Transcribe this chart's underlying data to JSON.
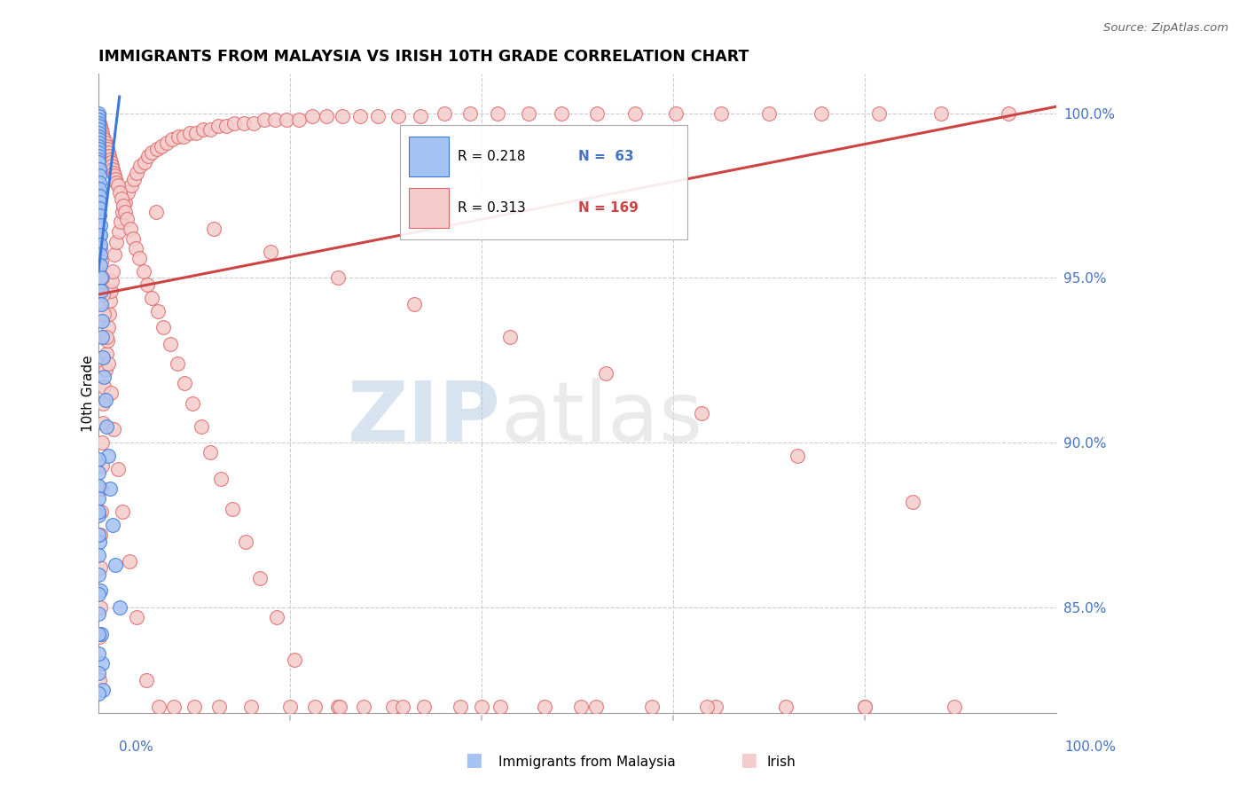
{
  "title": "IMMIGRANTS FROM MALAYSIA VS IRISH 10TH GRADE CORRELATION CHART",
  "source": "Source: ZipAtlas.com",
  "ylabel": "10th Grade",
  "ytick_labels": [
    "85.0%",
    "90.0%",
    "95.0%",
    "100.0%"
  ],
  "ytick_values": [
    0.85,
    0.9,
    0.95,
    1.0
  ],
  "xrange": [
    0.0,
    1.0
  ],
  "yrange": [
    0.818,
    1.012
  ],
  "blue_color": "#a4c2f4",
  "pink_color": "#f4cccc",
  "blue_edge_color": "#3c78d8",
  "pink_edge_color": "#e06666",
  "blue_line_color": "#3c78d8",
  "pink_line_color": "#cc4444",
  "legend_blue_R": "R = 0.218",
  "legend_blue_N": "N =  63",
  "legend_pink_R": "R = 0.313",
  "legend_pink_N": "N = 169",
  "watermark_zip": "ZIP",
  "watermark_atlas": "atlas",
  "grid_color": "#cccccc",
  "blue_trend_x": [
    0.0,
    0.022
  ],
  "blue_trend_y": [
    0.952,
    1.005
  ],
  "pink_trend_x": [
    0.0,
    1.0
  ],
  "pink_trend_y": [
    0.945,
    1.002
  ],
  "blue_x": [
    0.0,
    0.0,
    0.0,
    0.0,
    0.0,
    0.0,
    0.0,
    0.0,
    0.0,
    0.0,
    0.0,
    0.0,
    0.0,
    0.0,
    0.0,
    0.0,
    0.001,
    0.001,
    0.001,
    0.001,
    0.001,
    0.001,
    0.001,
    0.001,
    0.002,
    0.002,
    0.002,
    0.002,
    0.002,
    0.003,
    0.003,
    0.003,
    0.004,
    0.004,
    0.005,
    0.006,
    0.007,
    0.008,
    0.01,
    0.012,
    0.015,
    0.018,
    0.022,
    0.001,
    0.002,
    0.003,
    0.004,
    0.005,
    0.0,
    0.0,
    0.0,
    0.0,
    0.0,
    0.0,
    0.0,
    0.0,
    0.0,
    0.0,
    0.0,
    0.0,
    0.0,
    0.0,
    0.0
  ],
  "blue_y": [
    1.0,
    0.999,
    0.998,
    0.997,
    0.996,
    0.995,
    0.994,
    0.993,
    0.992,
    0.991,
    0.99,
    0.989,
    0.988,
    0.987,
    0.986,
    0.985,
    0.983,
    0.981,
    0.979,
    0.977,
    0.975,
    0.973,
    0.971,
    0.969,
    0.966,
    0.963,
    0.96,
    0.957,
    0.954,
    0.95,
    0.946,
    0.942,
    0.937,
    0.932,
    0.926,
    0.92,
    0.913,
    0.905,
    0.896,
    0.886,
    0.875,
    0.863,
    0.85,
    0.87,
    0.855,
    0.842,
    0.833,
    0.825,
    0.878,
    0.872,
    0.866,
    0.86,
    0.854,
    0.848,
    0.842,
    0.836,
    0.83,
    0.824,
    0.895,
    0.891,
    0.887,
    0.883,
    0.879
  ],
  "pink_x": [
    0.001,
    0.001,
    0.002,
    0.002,
    0.002,
    0.003,
    0.003,
    0.004,
    0.004,
    0.005,
    0.005,
    0.006,
    0.007,
    0.008,
    0.009,
    0.01,
    0.011,
    0.012,
    0.013,
    0.014,
    0.015,
    0.017,
    0.019,
    0.021,
    0.023,
    0.025,
    0.028,
    0.031,
    0.034,
    0.037,
    0.04,
    0.044,
    0.048,
    0.052,
    0.056,
    0.061,
    0.066,
    0.071,
    0.077,
    0.083,
    0.089,
    0.095,
    0.102,
    0.109,
    0.117,
    0.125,
    0.133,
    0.142,
    0.152,
    0.162,
    0.173,
    0.184,
    0.196,
    0.209,
    0.223,
    0.238,
    0.255,
    0.273,
    0.292,
    0.313,
    0.336,
    0.361,
    0.388,
    0.417,
    0.449,
    0.483,
    0.52,
    0.56,
    0.603,
    0.65,
    0.7,
    0.755,
    0.815,
    0.88,
    0.95,
    0.001,
    0.002,
    0.003,
    0.004,
    0.005,
    0.006,
    0.007,
    0.008,
    0.009,
    0.01,
    0.011,
    0.012,
    0.013,
    0.014,
    0.015,
    0.016,
    0.017,
    0.018,
    0.019,
    0.02,
    0.022,
    0.024,
    0.026,
    0.028,
    0.03,
    0.033,
    0.036,
    0.039,
    0.043,
    0.047,
    0.051,
    0.056,
    0.062,
    0.068,
    0.075,
    0.082,
    0.09,
    0.098,
    0.107,
    0.117,
    0.128,
    0.14,
    0.154,
    0.169,
    0.186,
    0.205,
    0.226,
    0.25,
    0.277,
    0.307,
    0.34,
    0.378,
    0.419,
    0.466,
    0.519,
    0.578,
    0.644,
    0.718,
    0.8,
    0.893,
    0.001,
    0.002,
    0.003,
    0.004,
    0.005,
    0.006,
    0.008,
    0.01,
    0.013,
    0.016,
    0.02,
    0.025,
    0.032,
    0.04,
    0.05,
    0.063,
    0.079,
    0.1,
    0.126,
    0.159,
    0.2,
    0.252,
    0.318,
    0.4,
    0.504,
    0.635,
    0.8,
    0.06,
    0.12,
    0.18,
    0.25,
    0.33,
    0.43,
    0.53,
    0.63,
    0.73,
    0.85
  ],
  "pink_y": [
    0.828,
    0.841,
    0.85,
    0.862,
    0.872,
    0.879,
    0.886,
    0.893,
    0.9,
    0.906,
    0.912,
    0.917,
    0.922,
    0.927,
    0.931,
    0.935,
    0.939,
    0.943,
    0.946,
    0.949,
    0.952,
    0.957,
    0.961,
    0.964,
    0.967,
    0.97,
    0.973,
    0.976,
    0.978,
    0.98,
    0.982,
    0.984,
    0.985,
    0.987,
    0.988,
    0.989,
    0.99,
    0.991,
    0.992,
    0.993,
    0.993,
    0.994,
    0.994,
    0.995,
    0.995,
    0.996,
    0.996,
    0.997,
    0.997,
    0.997,
    0.998,
    0.998,
    0.998,
    0.998,
    0.999,
    0.999,
    0.999,
    0.999,
    0.999,
    0.999,
    0.999,
    1.0,
    1.0,
    1.0,
    1.0,
    1.0,
    1.0,
    1.0,
    1.0,
    1.0,
    1.0,
    1.0,
    1.0,
    1.0,
    1.0,
    0.997,
    0.996,
    0.995,
    0.994,
    0.993,
    0.992,
    0.991,
    0.99,
    0.989,
    0.988,
    0.987,
    0.986,
    0.985,
    0.984,
    0.983,
    0.982,
    0.981,
    0.98,
    0.979,
    0.978,
    0.976,
    0.974,
    0.972,
    0.97,
    0.968,
    0.965,
    0.962,
    0.959,
    0.956,
    0.952,
    0.948,
    0.944,
    0.94,
    0.935,
    0.93,
    0.924,
    0.918,
    0.912,
    0.905,
    0.897,
    0.889,
    0.88,
    0.87,
    0.859,
    0.847,
    0.834,
    0.82,
    0.82,
    0.82,
    0.82,
    0.82,
    0.82,
    0.82,
    0.82,
    0.82,
    0.82,
    0.82,
    0.82,
    0.82,
    0.82,
    0.963,
    0.959,
    0.955,
    0.95,
    0.945,
    0.939,
    0.932,
    0.924,
    0.915,
    0.904,
    0.892,
    0.879,
    0.864,
    0.847,
    0.828,
    0.82,
    0.82,
    0.82,
    0.82,
    0.82,
    0.82,
    0.82,
    0.82,
    0.82,
    0.82,
    0.82,
    0.82,
    0.97,
    0.965,
    0.958,
    0.95,
    0.942,
    0.932,
    0.921,
    0.909,
    0.896,
    0.882
  ]
}
